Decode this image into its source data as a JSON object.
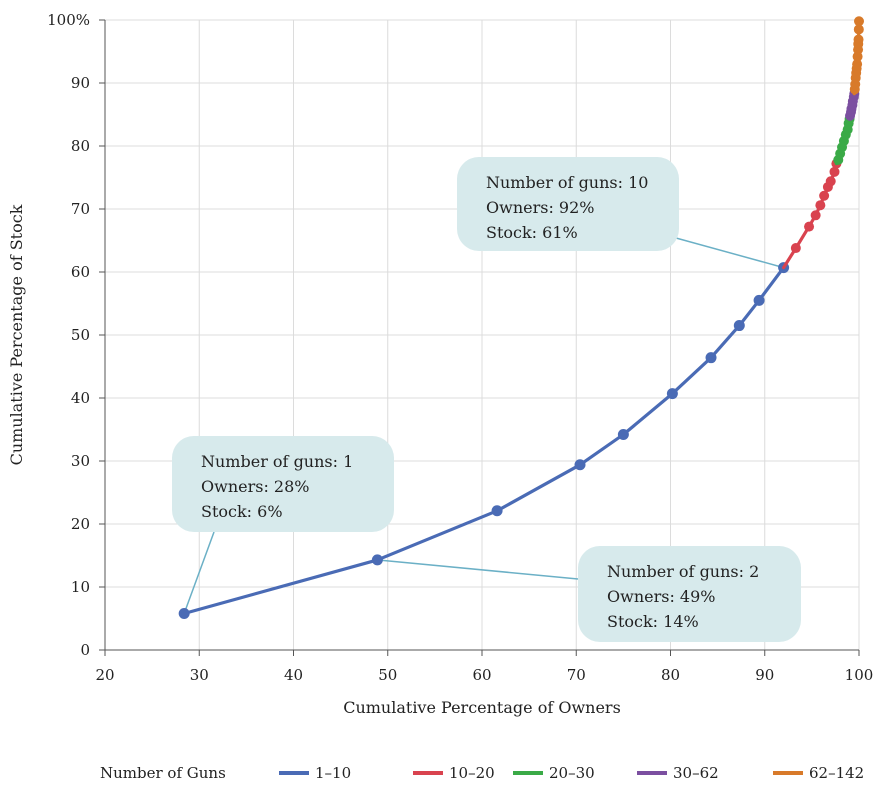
{
  "chart_data": {
    "type": "line",
    "title": "",
    "xlabel": "Cumulative Percentage of Owners",
    "ylabel": "Cumulative Percentage of Stock",
    "xlim": [
      20,
      100
    ],
    "ylim": [
      0,
      100
    ],
    "x_ticks": [
      "20",
      "30",
      "40",
      "50",
      "60",
      "70",
      "80",
      "90",
      "100"
    ],
    "y_ticks": [
      "0",
      "10",
      "20",
      "30",
      "40",
      "50",
      "60",
      "70",
      "80",
      "90",
      "100%"
    ],
    "grid": true,
    "legend_title": "Number of Guns",
    "legend_position": "bottom",
    "series": [
      {
        "name": "1–10",
        "color": "#4a6bb5",
        "points": [
          [
            28.4,
            5.8
          ],
          [
            48.9,
            14.3
          ],
          [
            61.6,
            22.1
          ],
          [
            70.4,
            29.4
          ],
          [
            75.0,
            34.2
          ],
          [
            80.2,
            40.7
          ],
          [
            84.3,
            46.4
          ],
          [
            87.3,
            51.5
          ],
          [
            89.4,
            55.5
          ],
          [
            92.0,
            60.7
          ]
        ]
      },
      {
        "name": "10–20",
        "color": "#d9434f",
        "points": [
          [
            93.3,
            63.8
          ],
          [
            94.7,
            67.2
          ],
          [
            95.4,
            69.0
          ],
          [
            95.9,
            70.6
          ],
          [
            96.3,
            72.1
          ],
          [
            96.7,
            73.5
          ],
          [
            97.0,
            74.4
          ],
          [
            97.4,
            75.9
          ],
          [
            97.6,
            77.2
          ]
        ]
      },
      {
        "name": "20–30",
        "color": "#3aaa47",
        "points": [
          [
            97.8,
            77.8
          ],
          [
            98.0,
            78.8
          ],
          [
            98.2,
            79.8
          ],
          [
            98.4,
            80.8
          ],
          [
            98.6,
            81.8
          ],
          [
            98.8,
            82.6
          ],
          [
            98.9,
            83.6
          ],
          [
            99.0,
            84.3
          ]
        ]
      },
      {
        "name": "30–62",
        "color": "#7b4fa0",
        "points": [
          [
            99.05,
            84.8
          ],
          [
            99.15,
            85.4
          ],
          [
            99.2,
            85.9
          ],
          [
            99.3,
            86.5
          ],
          [
            99.35,
            87.1
          ],
          [
            99.45,
            87.8
          ],
          [
            99.5,
            88.3
          ]
        ]
      },
      {
        "name": "62–142",
        "color": "#d87a2a",
        "points": [
          [
            99.55,
            89.0
          ],
          [
            99.6,
            89.8
          ],
          [
            99.65,
            90.8
          ],
          [
            99.7,
            91.6
          ],
          [
            99.75,
            92.3
          ],
          [
            99.8,
            93.0
          ],
          [
            99.85,
            94.2
          ],
          [
            99.9,
            95.3
          ],
          [
            99.92,
            96.2
          ],
          [
            99.95,
            96.9
          ],
          [
            99.98,
            98.5
          ],
          [
            100.0,
            99.8
          ]
        ]
      }
    ],
    "annotations": [
      {
        "lines": [
          "Number of guns: 1",
          "Owners: 28%",
          "Stock: 6%"
        ],
        "target": [
          28.4,
          5.8
        ]
      },
      {
        "lines": [
          "Number of guns: 2",
          "Owners: 49%",
          "Stock: 14%"
        ],
        "target": [
          48.9,
          14.3
        ]
      },
      {
        "lines": [
          "Number of guns: 10",
          "Owners: 92%",
          "Stock: 61%"
        ],
        "target": [
          92.0,
          60.7
        ]
      }
    ]
  }
}
